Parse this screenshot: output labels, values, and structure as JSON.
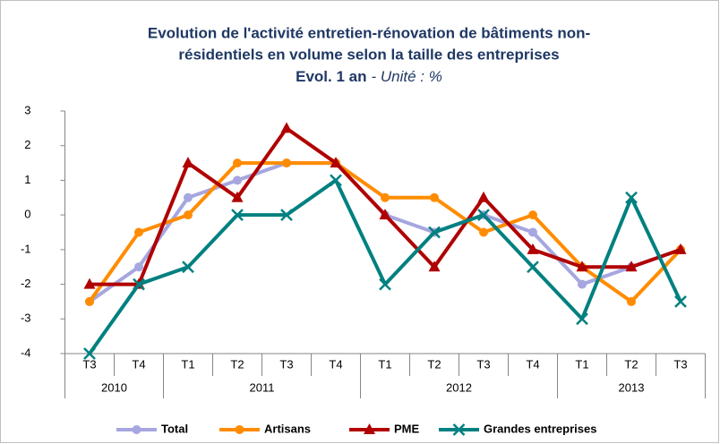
{
  "chart_data": {
    "type": "line",
    "title": [
      "Evolution de l'activité entretien-rénovation de bâtiments non-",
      "résidentiels en volume selon la taille des entreprises"
    ],
    "subtitle": "Evol. 1 an",
    "unit_note": "- Unité : %",
    "groups": [
      {
        "name": "2010",
        "categories": [
          "T3",
          "T4"
        ]
      },
      {
        "name": "2011",
        "categories": [
          "T1",
          "T2",
          "T3",
          "T4"
        ]
      },
      {
        "name": "2012",
        "categories": [
          "T1",
          "T2",
          "T3",
          "T4"
        ]
      },
      {
        "name": "2013",
        "categories": [
          "T1",
          "T2",
          "T3"
        ]
      }
    ],
    "series": [
      {
        "name": "Total",
        "color": "#a6a6e0",
        "marker": "circle",
        "values": [
          -2.5,
          -1.5,
          0.5,
          1,
          1.5,
          1.5,
          0,
          -0.5,
          0,
          -0.5,
          -2,
          -1.5,
          -1
        ]
      },
      {
        "name": "Artisans",
        "color": "#ff8c00",
        "marker": "circle",
        "values": [
          -2.5,
          -0.5,
          0,
          1.5,
          1.5,
          1.5,
          0.5,
          0.5,
          -0.5,
          0,
          -1.5,
          -2.5,
          -1
        ]
      },
      {
        "name": "PME",
        "color": "#b00000",
        "marker": "triangle",
        "values": [
          -2,
          -2,
          1.5,
          0.5,
          2.5,
          1.5,
          0,
          -1.5,
          0.5,
          -1,
          -1.5,
          -1.5,
          -1
        ]
      },
      {
        "name": "Grandes entreprises",
        "color": "#008080",
        "marker": "x",
        "values": [
          -4,
          -2,
          -1.5,
          0,
          0,
          1,
          -2,
          -0.5,
          0,
          -1.5,
          -3,
          0.5,
          -2.5
        ]
      }
    ],
    "ylim": [
      -4,
      3
    ],
    "yticks": [
      -4,
      -3,
      -2,
      -1,
      0,
      1,
      2,
      3
    ],
    "legend": "bottom"
  }
}
